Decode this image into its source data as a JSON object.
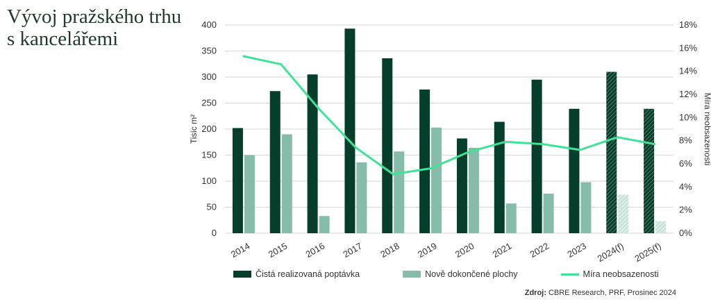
{
  "title_lines": [
    "Vývoj pražského trhu",
    "s kancelářemi"
  ],
  "colors": {
    "demand": "#053e2a",
    "completions": "#86bcaa",
    "vacancy": "#3ee495",
    "grid": "#d6d6d6",
    "title": "#1e3a2b"
  },
  "chart_data": {
    "type": "bar",
    "categories": [
      "2014",
      "2015",
      "2016",
      "2017",
      "2018",
      "2019",
      "2020",
      "2021",
      "2022",
      "2023",
      "2024(f)",
      "2025(f)"
    ],
    "forecast_categories": [
      "2024(f)",
      "2025(f)"
    ],
    "series": [
      {
        "name": "Čistá realizovaná poptávka",
        "type": "bar",
        "axis": "left",
        "values": [
          202,
          273,
          305,
          393,
          336,
          276,
          182,
          214,
          295,
          239,
          310,
          239
        ]
      },
      {
        "name": "Nově dokončené plochy",
        "type": "bar",
        "axis": "left",
        "values": [
          150,
          190,
          33,
          136,
          157,
          203,
          164,
          57,
          76,
          98,
          74,
          23
        ]
      },
      {
        "name": "Míra neobsazenosti",
        "type": "line",
        "axis": "right",
        "values": [
          15.3,
          14.6,
          10.8,
          7.4,
          5.1,
          5.6,
          7.0,
          7.9,
          7.7,
          7.2,
          8.3,
          7.7
        ]
      }
    ],
    "ylabel": "Tisíc m²",
    "ylabel_right": "Míra neobsazenosti",
    "ylim": [
      0,
      400
    ],
    "yticks": [
      "0",
      "50",
      "100",
      "150",
      "200",
      "250",
      "300",
      "350",
      "400"
    ],
    "ylim_right": [
      0,
      18
    ],
    "yticks_right": [
      "0%",
      "2%",
      "4%",
      "6%",
      "8%",
      "10%",
      "12%",
      "14%",
      "16%",
      "18%"
    ],
    "grid": true,
    "legend_position": "bottom"
  },
  "legend": {
    "demand": "Čistá realizovaná poptávka",
    "completions": "Nově dokončené plochy",
    "vacancy": "Míra neobsazenosti"
  },
  "source": {
    "label": "Zdroj:",
    "text": " CBRE Research, PRF, Prosinec 2024"
  }
}
